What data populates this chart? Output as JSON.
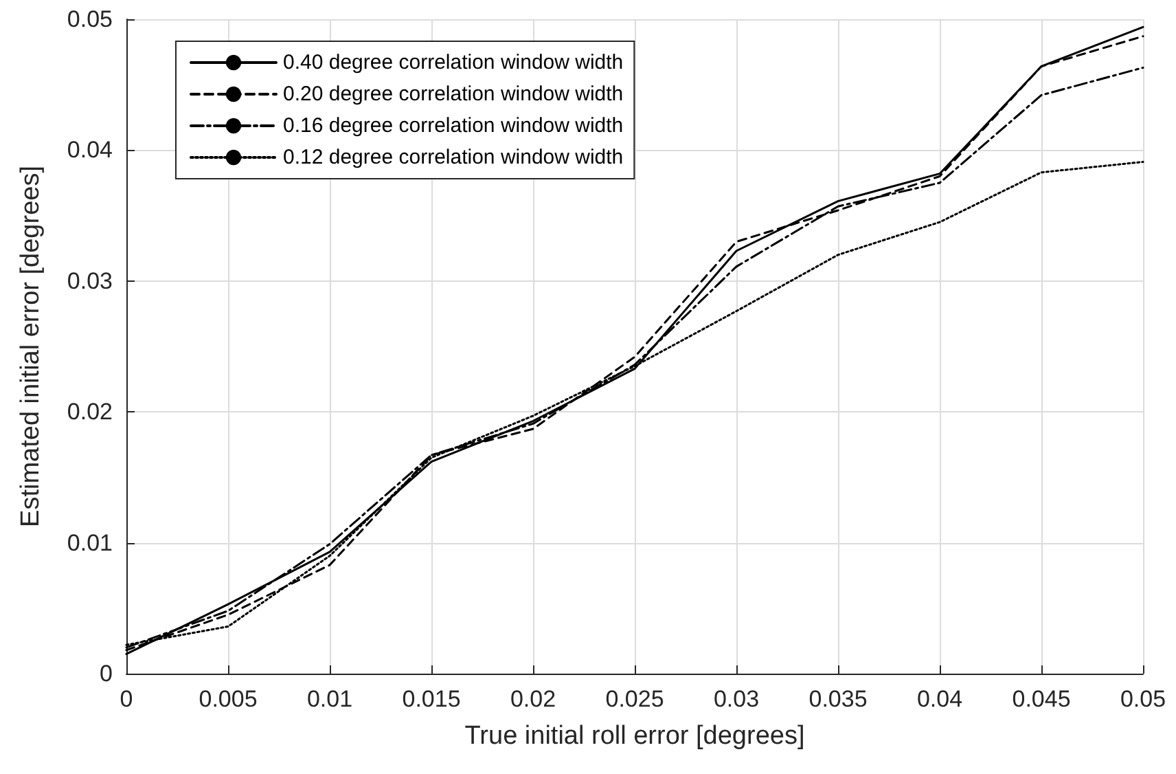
{
  "chart_data": {
    "type": "line",
    "xlabel": "True initial roll error [degrees]",
    "ylabel": "Estimated initial error [degrees]",
    "x": [
      0,
      0.005,
      0.01,
      0.015,
      0.02,
      0.025,
      0.03,
      0.035,
      0.04,
      0.045,
      0.05
    ],
    "series": [
      {
        "name": "0.40 degree correlation window width",
        "color": "#000000",
        "line_style": "solid",
        "values": [
          0.0015,
          0.0053,
          0.0093,
          0.0162,
          0.0193,
          0.0233,
          0.0323,
          0.0361,
          0.0382,
          0.0464,
          0.0494
        ]
      },
      {
        "name": "0.20 degree correlation window width",
        "color": "#000000",
        "line_style": "dashed",
        "values": [
          0.0018,
          0.0045,
          0.0083,
          0.0167,
          0.0187,
          0.0242,
          0.033,
          0.0354,
          0.038,
          0.0464,
          0.0487
        ]
      },
      {
        "name": "0.16 degree correlation window width",
        "color": "#000000",
        "line_style": "dashdot",
        "values": [
          0.002,
          0.0048,
          0.0099,
          0.0167,
          0.0191,
          0.0236,
          0.0311,
          0.0357,
          0.0375,
          0.0442,
          0.0463
        ]
      },
      {
        "name": "0.12 degree correlation window width",
        "color": "#000000",
        "line_style": "dotted",
        "values": [
          0.0022,
          0.0036,
          0.009,
          0.0165,
          0.0197,
          0.0235,
          0.0277,
          0.032,
          0.0345,
          0.0383,
          0.0391
        ]
      }
    ],
    "xlim": [
      0,
      0.05
    ],
    "xticks": [
      0,
      0.005,
      0.01,
      0.015,
      0.02,
      0.025,
      0.03,
      0.035,
      0.04,
      0.045,
      0.05
    ],
    "ylim": [
      0,
      0.05
    ],
    "yticks": [
      0,
      0.01,
      0.02,
      0.03,
      0.04,
      0.05
    ],
    "grid": true,
    "legend": "top left",
    "marker": "none"
  }
}
